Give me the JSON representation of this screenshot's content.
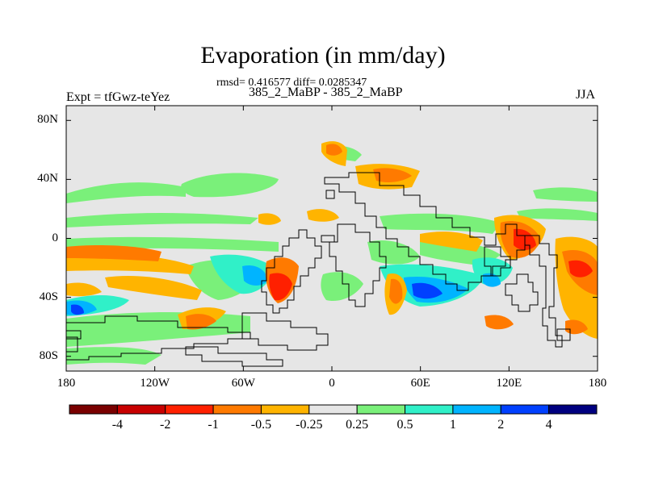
{
  "title": "Evaporation (in mm/day)",
  "stats_line": "rmsd= 0.416577 diff= 0.0285347",
  "subtitle": "385_2_MaBP - 385_2_MaBP",
  "left_label": "Expt = tfGwz-teYez",
  "right_label": "JJA",
  "map": {
    "projection": "cylindrical equidistant",
    "lon_range": [
      -180,
      180
    ],
    "lat_range": [
      -90,
      90
    ],
    "background_color": "#e6e6e6",
    "coastline_color": "#000000",
    "y_ticks": [
      {
        "label": "80N",
        "lat": 80
      },
      {
        "label": "40N",
        "lat": 40
      },
      {
        "label": "0",
        "lat": 0
      },
      {
        "label": "40S",
        "lat": -40
      },
      {
        "label": "80S",
        "lat": -80
      }
    ],
    "x_ticks": [
      {
        "label": "180",
        "lon": -180
      },
      {
        "label": "120W",
        "lon": -120
      },
      {
        "label": "60W",
        "lon": -60
      },
      {
        "label": "0",
        "lon": 0
      },
      {
        "label": "60E",
        "lon": 60
      },
      {
        "label": "120E",
        "lon": 120
      },
      {
        "label": "180",
        "lon": 180
      }
    ]
  },
  "colorbar": {
    "colors": [
      "#7a0000",
      "#c80000",
      "#ff2000",
      "#ff7a00",
      "#ffb400",
      "#e6e6e6",
      "#7af07a",
      "#30f0c8",
      "#00b4ff",
      "#0040ff",
      "#000080"
    ],
    "labels": [
      "-4",
      "-2",
      "-1",
      "-0.5",
      "-0.25",
      "0.25",
      "0.5",
      "1",
      "2",
      "4"
    ]
  }
}
